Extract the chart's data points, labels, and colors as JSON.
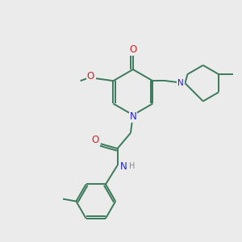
{
  "background_color": "#ebebeb",
  "bond_color": "#3a7a5a",
  "bond_width": 1.4,
  "atom_colors": {
    "N": "#2222cc",
    "O": "#cc2222",
    "C": "#3a7a5a",
    "H": "#888888"
  },
  "font_size": 7.5,
  "figsize": [
    3.0,
    3.0
  ],
  "dpi": 100
}
